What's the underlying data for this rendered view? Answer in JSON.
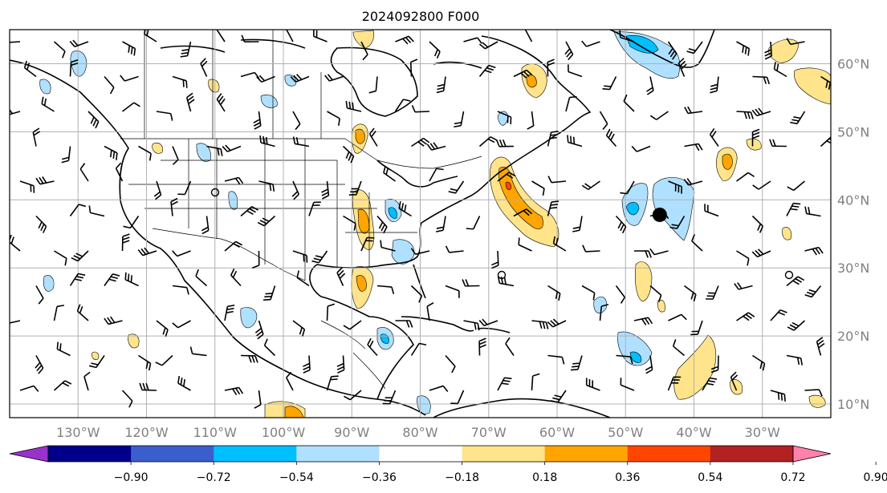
{
  "title": "2024092800 F000",
  "map": {
    "lon_range": [
      -140,
      -20
    ],
    "lat_range": [
      8,
      65
    ],
    "gridlines": true,
    "lon_ticks": [
      {
        "value": -130,
        "label": "130°W"
      },
      {
        "value": -120,
        "label": "120°W"
      },
      {
        "value": -110,
        "label": "110°W"
      },
      {
        "value": -100,
        "label": "100°W"
      },
      {
        "value": -90,
        "label": "90°W"
      },
      {
        "value": -80,
        "label": "80°W"
      },
      {
        "value": -70,
        "label": "70°W"
      },
      {
        "value": -60,
        "label": "60°W"
      },
      {
        "value": -50,
        "label": "50°W"
      },
      {
        "value": -40,
        "label": "40°W"
      },
      {
        "value": -30,
        "label": "30°W"
      }
    ],
    "lat_ticks": [
      {
        "value": 60,
        "label": "60°N"
      },
      {
        "value": 50,
        "label": "50°N"
      },
      {
        "value": 40,
        "label": "40°N"
      },
      {
        "value": 30,
        "label": "30°N"
      },
      {
        "value": 20,
        "label": "20°N"
      },
      {
        "value": 10,
        "label": "10°N"
      }
    ],
    "markers": [
      {
        "name": "large-dot",
        "lon": -45,
        "lat": 37.8
      }
    ]
  },
  "colorbar": {
    "levels": [
      "−0.90",
      "−0.72",
      "−0.54",
      "−0.36",
      "−0.18",
      "0.18",
      "0.36",
      "0.54",
      "0.72",
      "0.90"
    ],
    "colors": [
      "#9932cc",
      "#00008b",
      "#3a5fcd",
      "#00bfff",
      "#b0e0ff",
      "#ffffff",
      "#ffe48c",
      "#ffa500",
      "#ff4500",
      "#b22222",
      "#ff82ab"
    ],
    "extend": "both"
  },
  "features": {
    "positive_color": "#ffe48c",
    "positive_strong_color": "#ffa500",
    "negative_color": "#b0e0ff",
    "negative_strong_color": "#00bfff"
  }
}
